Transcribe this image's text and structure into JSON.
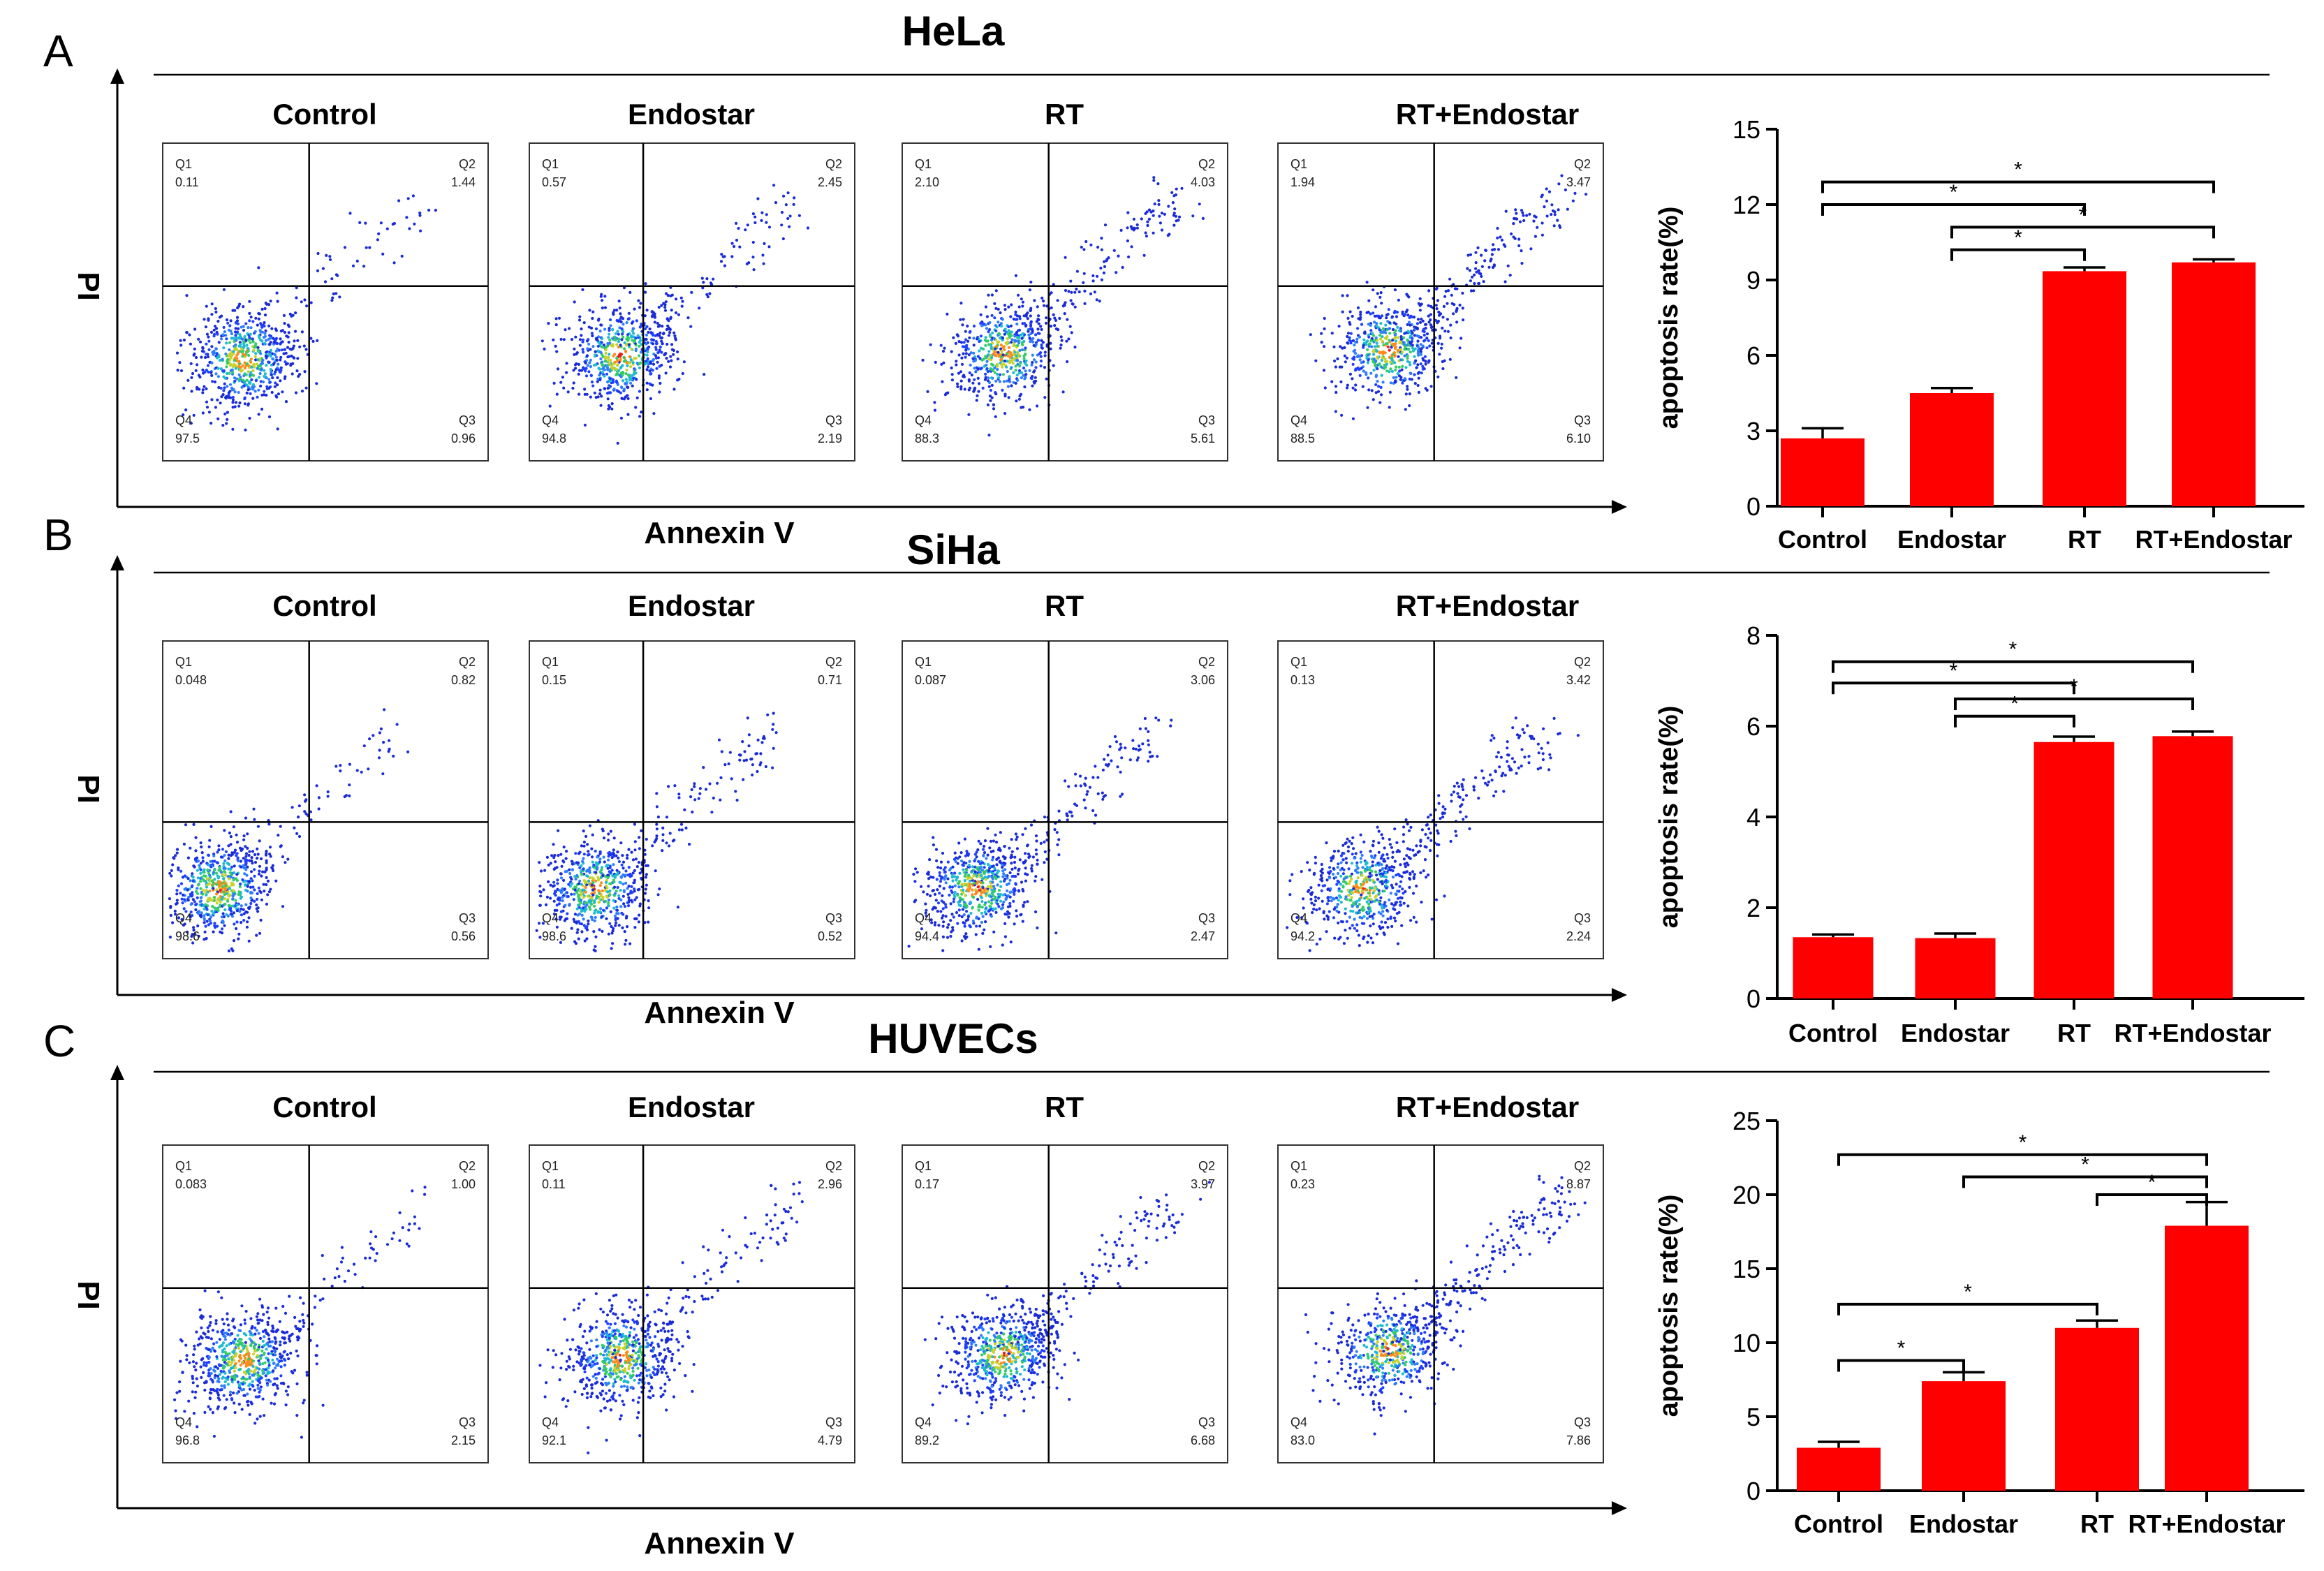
{
  "panels": [
    {
      "letter": "A",
      "cell_line": "HeLa",
      "x_axis_title": "Annexin V",
      "y_axis_title": "PI",
      "flow_plots": [
        {
          "title": "Control",
          "Q1": "0.11",
          "Q2": "1.44",
          "Q3": "0.96",
          "Q4": "97.5"
        },
        {
          "title": "Endostar",
          "Q1": "0.57",
          "Q2": "2.45",
          "Q3": "2.19",
          "Q4": "94.8"
        },
        {
          "title": "RT",
          "Q1": "2.10",
          "Q2": "4.03",
          "Q3": "5.61",
          "Q4": "88.3"
        },
        {
          "title": "RT+Endostar",
          "Q1": "1.94",
          "Q2": "3.47",
          "Q3": "6.10",
          "Q4": "88.5"
        }
      ]
    },
    {
      "letter": "B",
      "cell_line": "SiHa",
      "x_axis_title": "Annexin V",
      "y_axis_title": "PI",
      "flow_plots": [
        {
          "title": "Control",
          "Q1": "0.048",
          "Q2": "0.82",
          "Q3": "0.56",
          "Q4": "98.6"
        },
        {
          "title": "Endostar",
          "Q1": "0.15",
          "Q2": "0.71",
          "Q3": "0.52",
          "Q4": "98.6"
        },
        {
          "title": "RT",
          "Q1": "0.087",
          "Q2": "3.06",
          "Q3": "2.47",
          "Q4": "94.4"
        },
        {
          "title": "RT+Endostar",
          "Q1": "0.13",
          "Q2": "3.42",
          "Q3": "2.24",
          "Q4": "94.2"
        }
      ]
    },
    {
      "letter": "C",
      "cell_line": "HUVECs",
      "x_axis_title": "Annexin V",
      "y_axis_title": "PI",
      "flow_plots": [
        {
          "title": "Control",
          "Q1": "0.083",
          "Q2": "1.00",
          "Q3": "2.15",
          "Q4": "96.8"
        },
        {
          "title": "Endostar",
          "Q1": "0.11",
          "Q2": "2.96",
          "Q3": "4.79",
          "Q4": "92.1"
        },
        {
          "title": "RT",
          "Q1": "0.17",
          "Q2": "3.97",
          "Q3": "6.68",
          "Q4": "89.2"
        },
        {
          "title": "RT+Endostar",
          "Q1": "0.23",
          "Q2": "8.87",
          "Q3": "7.86",
          "Q4": "83.0"
        }
      ]
    }
  ],
  "chart_data": [
    {
      "type": "bar",
      "panel": "A",
      "categories": [
        "Control",
        "Endostar",
        "RT",
        "RT+Endostar"
      ],
      "values": [
        2.7,
        4.5,
        9.35,
        9.7
      ],
      "errors": [
        0.4,
        0.2,
        0.15,
        0.12
      ],
      "ylabel": "apoptosis rate(%)",
      "ylim": [
        0,
        15
      ],
      "yticks": [
        0,
        3,
        6,
        9,
        12,
        15
      ],
      "bar_color": "#ff0000",
      "significance": [
        {
          "from": 0,
          "to": 3,
          "label": "*"
        },
        {
          "from": 0,
          "to": 2,
          "label": "*"
        },
        {
          "from": 1,
          "to": 3,
          "label": "*"
        },
        {
          "from": 1,
          "to": 2,
          "label": "*"
        }
      ]
    },
    {
      "type": "bar",
      "panel": "B",
      "categories": [
        "Control",
        "Endostar",
        "RT",
        "RT+Endostar"
      ],
      "values": [
        1.35,
        1.33,
        5.65,
        5.78
      ],
      "errors": [
        0.06,
        0.1,
        0.12,
        0.1
      ],
      "ylabel": "apoptosis rate(%)",
      "ylim": [
        0,
        8
      ],
      "yticks": [
        0,
        2,
        4,
        6,
        8
      ],
      "bar_color": "#ff0000",
      "significance": [
        {
          "from": 0,
          "to": 3,
          "label": "*"
        },
        {
          "from": 0,
          "to": 2,
          "label": "*"
        },
        {
          "from": 1,
          "to": 3,
          "label": "*"
        },
        {
          "from": 1,
          "to": 2,
          "label": "*"
        }
      ]
    },
    {
      "type": "bar",
      "panel": "C",
      "categories": [
        "Control",
        "Endostar",
        "RT",
        "RT+Endostar"
      ],
      "values": [
        2.9,
        7.4,
        11.0,
        17.9
      ],
      "errors": [
        0.4,
        0.6,
        0.5,
        1.6
      ],
      "ylabel": "apoptosis rate(%)",
      "ylim": [
        0,
        25
      ],
      "yticks": [
        0,
        5,
        10,
        15,
        20,
        25
      ],
      "bar_color": "#ff0000",
      "significance": [
        {
          "from": 0,
          "to": 3,
          "label": "*"
        },
        {
          "from": 1,
          "to": 3,
          "label": "*"
        },
        {
          "from": 2,
          "to": 3,
          "label": "*"
        },
        {
          "from": 0,
          "to": 2,
          "label": "*"
        },
        {
          "from": 0,
          "to": 1,
          "label": "*"
        }
      ]
    }
  ]
}
